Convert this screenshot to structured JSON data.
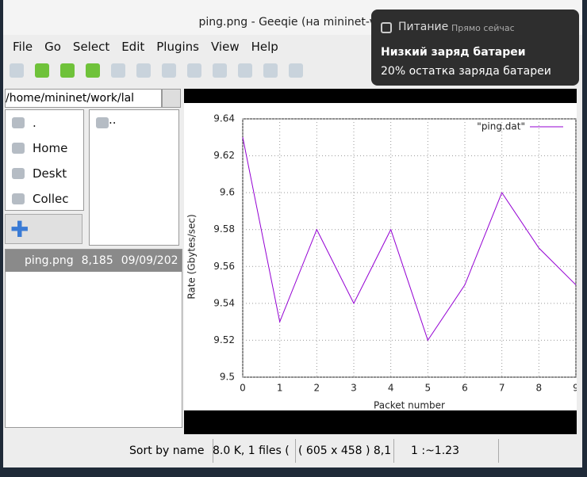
{
  "window": {
    "title": "ping.png - Geeqie (на mininet-vm"
  },
  "menu": [
    "File",
    "Go",
    "Select",
    "Edit",
    "Plugins",
    "View",
    "Help"
  ],
  "sidebar": {
    "path": "/home/mininet/work/lal",
    "folders": [
      ".",
      "Home",
      "Deskt",
      "Collec"
    ],
    "subfolders": [
      ".."
    ]
  },
  "file_list": [
    {
      "name": "ping.png",
      "size": "8,185",
      "date": "09/09/202"
    }
  ],
  "status": {
    "sort": "Sort by name",
    "files": "8.0 K, 1 files (",
    "image": "( 605 x 458 ) 8,1",
    "zoom": "1 :~1.23"
  },
  "notification": {
    "app": "Питание",
    "time": "Прямо сейчас",
    "title": "Низкий заряд батареи",
    "body": "20% остатка заряда батареи"
  },
  "chart_data": {
    "type": "line",
    "x_label": "Packet number",
    "y_label": "Rate (Gbytes/sec)",
    "x": [
      0,
      1,
      2,
      3,
      4,
      5,
      6,
      7,
      8,
      9
    ],
    "series": [
      {
        "name": "\"ping.dat\"",
        "color": "#9400d3",
        "values": [
          9.63,
          9.53,
          9.58,
          9.54,
          9.58,
          9.52,
          9.55,
          9.6,
          9.57,
          9.55
        ]
      }
    ],
    "xlim": [
      0,
      9
    ],
    "xticks": [
      0,
      1,
      2,
      3,
      4,
      5,
      6,
      7,
      8,
      9
    ],
    "ylim": [
      9.5,
      9.64
    ],
    "yticks": [
      9.5,
      9.52,
      9.54,
      9.56,
      9.58,
      9.6,
      9.62,
      9.64
    ],
    "grid": true
  }
}
